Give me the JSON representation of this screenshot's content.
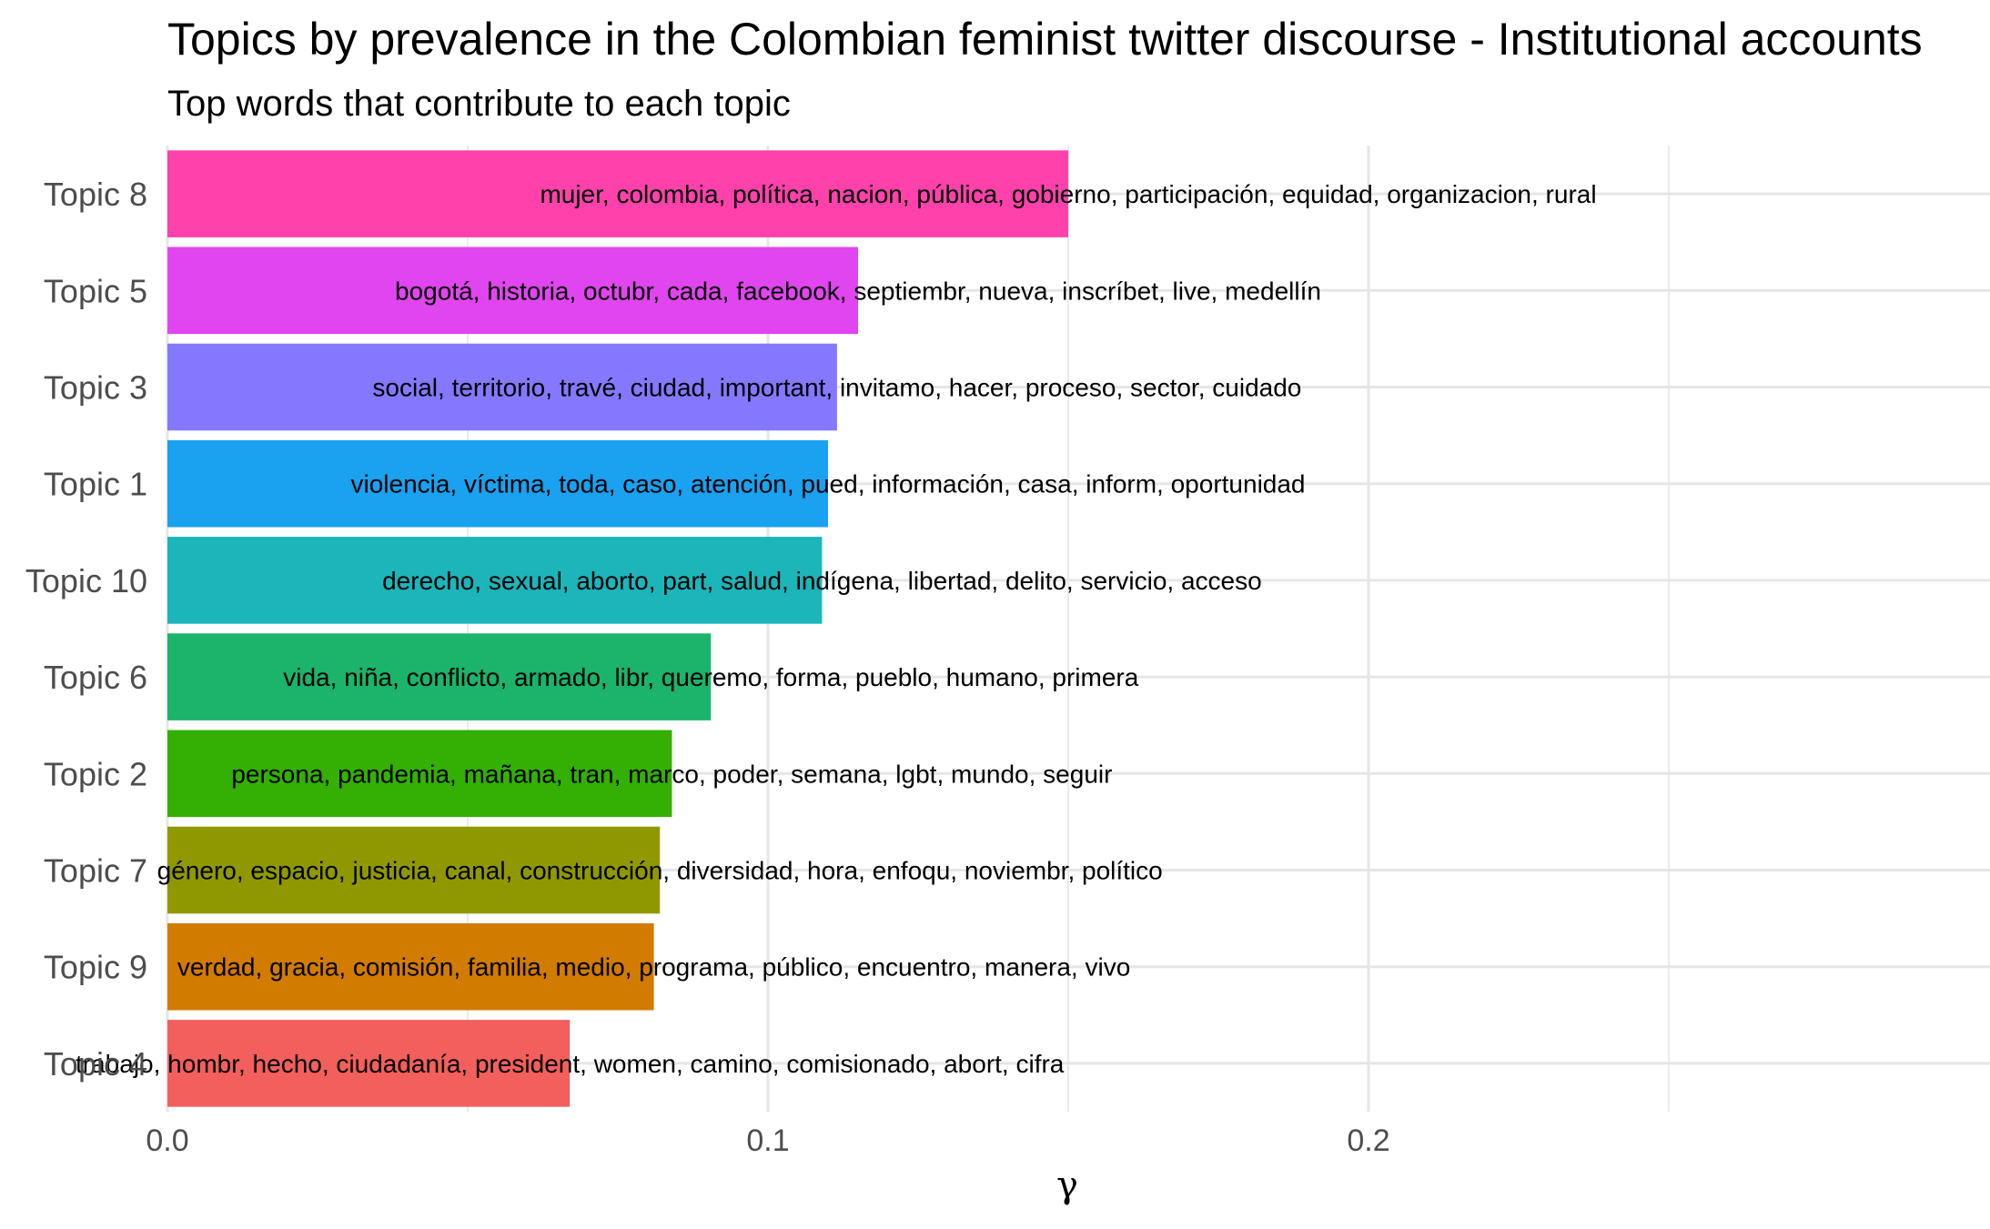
{
  "chart_data": {
    "type": "bar",
    "orientation": "horizontal",
    "title": "Topics by prevalence in the Colombian feminist twitter discourse - Institutional accounts",
    "subtitle": "Top words that contribute to each topic",
    "xlabel": "γ",
    "ylabel": "",
    "xlim": [
      0,
      0.3
    ],
    "x_ticks": [
      "0.0",
      "0.1",
      "0.2"
    ],
    "x_tick_values": [
      0,
      0.1,
      0.2
    ],
    "grid": true,
    "legend": "none",
    "categories": [
      "Topic 8",
      "Topic 5",
      "Topic 3",
      "Topic 1",
      "Topic 10",
      "Topic 6",
      "Topic 2",
      "Topic 7",
      "Topic 9",
      "Topic 4"
    ],
    "values": [
      0.15,
      0.115,
      0.1115,
      0.11,
      0.109,
      0.0905,
      0.084,
      0.082,
      0.081,
      0.067
    ],
    "colors": [
      "#FF41AC",
      "#E145F0",
      "#8478FF",
      "#1AA1F0",
      "#1BB5BA",
      "#1BB46A",
      "#34AF04",
      "#909800",
      "#D17B00",
      "#F35F5C"
    ],
    "labels": [
      "mujer, colombia, política, nacion, pública, gobierno, participación, equidad, organizacion, rural",
      "bogotá, historia, octubr, cada, facebook, septiembr, nueva, inscríbet, live, medellín",
      "social, territorio, travé, ciudad, important, invitamo, hacer, proceso, sector, cuidado",
      "violencia, víctima, toda, caso, atención, pued, información, casa, inform, oportunidad",
      "derecho, sexual, aborto, part, salud, indígena, libertad, delito, servicio, acceso",
      "vida, niña, conflicto, armado, libr, queremo, forma, pueblo, humano, primera",
      "persona, pandemia, mañana, tran, marco, poder, semana, lgbt, mundo, seguir",
      "género, espacio, justicia, canal, construcción, diversidad, hora, enfoqu, noviembr, político",
      "verdad, gracia, comisión, familia, medio, programa, público, encuentro, manera, vivo",
      "trabajo, hombr, hecho, ciudadanía, president, women, camino, comisionado, abort, cifra"
    ]
  }
}
